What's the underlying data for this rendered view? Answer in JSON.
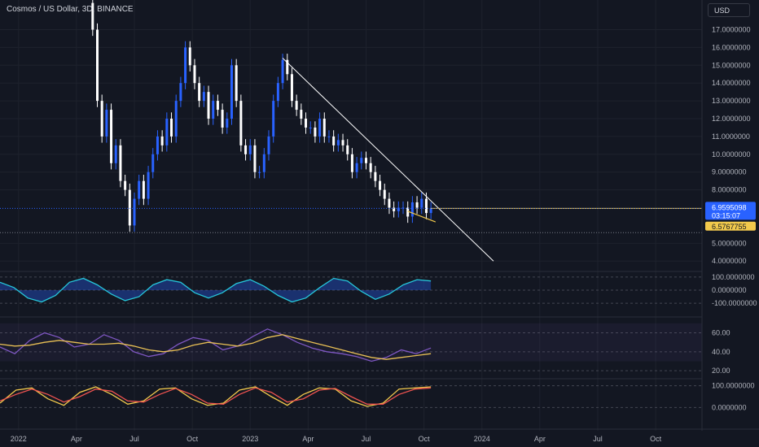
{
  "header": {
    "symbol_title": "Cosmos / US Dollar, 3D, BINANCE",
    "currency": "USD"
  },
  "colors": {
    "background": "#131722",
    "up": "#2962ff",
    "down": "#ffffff",
    "trendline": "#ffffff",
    "highlight": "#f2c94c",
    "last_price_badge": "#2962ff",
    "countdown_badge": "#1e53e5",
    "ref_badge": "#f2c94c",
    "osc_line": "#26c6da",
    "osc_fill": "#2962ff",
    "rsi_line": "#7e57c2",
    "rsi_ma": "#f2c94c",
    "stoch_k": "#f2c94c",
    "stoch_d": "#ef5350"
  },
  "chart_data": [
    {
      "type": "candlestick",
      "title": "Cosmos / US Dollar, 3D, BINANCE",
      "price_labels": [
        "17.0000000",
        "16.0000000",
        "15.0000000",
        "14.0000000",
        "13.0000000",
        "12.0000000",
        "11.0000000",
        "10.0000000",
        "9.0000000",
        "8.0000000",
        "6.9595098",
        "03:15:07",
        "6.5767755",
        "5.0000000",
        "4.0000000"
      ],
      "y_ticks": [
        17,
        16,
        15,
        14,
        13,
        12,
        11,
        10,
        9,
        8,
        5,
        4
      ],
      "last_price": 6.9595098,
      "last_price_label": "6.9595098",
      "countdown_label": "03:15:07",
      "ref_price": 6.5767755,
      "ref_price_label": "6.5767755",
      "ylim": [
        3.6,
        18.3
      ],
      "x_tick_labels": [
        "2022",
        "Apr",
        "Jul",
        "Oct",
        "2023",
        "Apr",
        "Jul",
        "Oct",
        "2024",
        "Apr",
        "Jul",
        "Oct"
      ],
      "x_tick_index": [
        0,
        1,
        2,
        3,
        4,
        5,
        6,
        7,
        8,
        9,
        10,
        11
      ],
      "close_path": [
        [
          2022.3,
          18.5
        ],
        [
          2022.32,
          17.0
        ],
        [
          2022.34,
          13.0
        ],
        [
          2022.36,
          11.0
        ],
        [
          2022.38,
          12.5
        ],
        [
          2022.4,
          9.5
        ],
        [
          2022.42,
          10.5
        ],
        [
          2022.44,
          8.5
        ],
        [
          2022.46,
          8.0
        ],
        [
          2022.48,
          6.0
        ],
        [
          2022.5,
          7.5
        ],
        [
          2022.52,
          8.5
        ],
        [
          2022.54,
          7.5
        ],
        [
          2022.56,
          9.0
        ],
        [
          2022.58,
          10.0
        ],
        [
          2022.6,
          11.0
        ],
        [
          2022.62,
          10.5
        ],
        [
          2022.64,
          12.0
        ],
        [
          2022.66,
          11.0
        ],
        [
          2022.68,
          13.0
        ],
        [
          2022.7,
          14.0
        ],
        [
          2022.72,
          16.0
        ],
        [
          2022.74,
          15.0
        ],
        [
          2022.76,
          14.0
        ],
        [
          2022.78,
          13.0
        ],
        [
          2022.8,
          13.5
        ],
        [
          2022.82,
          12.0
        ],
        [
          2022.84,
          13.0
        ],
        [
          2022.86,
          12.5
        ],
        [
          2022.88,
          11.5
        ],
        [
          2022.9,
          12.0
        ],
        [
          2022.92,
          15.0
        ],
        [
          2022.94,
          13.0
        ],
        [
          2022.96,
          10.5
        ],
        [
          2022.98,
          10.0
        ],
        [
          2023.0,
          10.5
        ],
        [
          2023.02,
          9.0
        ],
        [
          2023.04,
          9.0
        ],
        [
          2023.06,
          10.0
        ],
        [
          2023.08,
          11.0
        ],
        [
          2023.1,
          13.0
        ],
        [
          2023.12,
          14.0
        ],
        [
          2023.14,
          15.3
        ],
        [
          2023.16,
          14.5
        ],
        [
          2023.18,
          13.0
        ],
        [
          2023.2,
          12.5
        ],
        [
          2023.22,
          12.0
        ],
        [
          2023.24,
          11.5
        ],
        [
          2023.26,
          11.5
        ],
        [
          2023.28,
          11.0
        ],
        [
          2023.3,
          12.0
        ],
        [
          2023.32,
          11.0
        ],
        [
          2023.34,
          11.0
        ],
        [
          2023.36,
          10.5
        ],
        [
          2023.38,
          10.8
        ],
        [
          2023.4,
          10.5
        ],
        [
          2023.42,
          10.0
        ],
        [
          2023.44,
          9.0
        ],
        [
          2023.46,
          9.5
        ],
        [
          2023.48,
          9.8
        ],
        [
          2023.5,
          9.5
        ],
        [
          2023.52,
          9.0
        ],
        [
          2023.54,
          8.5
        ],
        [
          2023.56,
          8.0
        ],
        [
          2023.58,
          7.5
        ],
        [
          2023.6,
          7.0
        ],
        [
          2023.62,
          6.8
        ],
        [
          2023.64,
          7.0
        ],
        [
          2023.66,
          7.0
        ],
        [
          2023.68,
          6.5
        ],
        [
          2023.7,
          7.3
        ],
        [
          2023.72,
          7.0
        ],
        [
          2023.74,
          7.5
        ],
        [
          2023.76,
          6.7
        ],
        [
          2023.78,
          6.96
        ]
      ],
      "annotations": [
        {
          "type": "trendline",
          "from": [
            2023.14,
            15.4
          ],
          "to": [
            2024.05,
            4.0
          ]
        },
        {
          "type": "horizontal",
          "y": 6.96,
          "from": 2023.78,
          "to": 2024.42
        },
        {
          "type": "arrow",
          "from": [
            2023.68,
            6.8
          ],
          "to": [
            2023.8,
            6.2
          ]
        }
      ]
    },
    {
      "type": "line",
      "title": "",
      "y_tick_labels": [
        "100.0000000",
        "0.0000000",
        "-100.0000000"
      ],
      "y_ticks": [
        100,
        0,
        -100
      ],
      "ylim": [
        -130,
        130
      ],
      "series": [
        {
          "values": [
            60,
            20,
            -60,
            -90,
            -40,
            60,
            90,
            40,
            -30,
            -80,
            -50,
            40,
            80,
            60,
            -20,
            -60,
            -20,
            50,
            80,
            30,
            -40,
            -90,
            -60,
            20,
            90,
            70,
            -10,
            -70,
            -30,
            40,
            80,
            70
          ]
        }
      ]
    },
    {
      "type": "line",
      "title": "",
      "y_tick_labels": [
        "60.00",
        "40.00",
        "20.00"
      ],
      "y_ticks": [
        60,
        40,
        20
      ],
      "ylim": [
        15,
        75
      ],
      "series": [
        {
          "values": [
            45,
            38,
            52,
            60,
            55,
            45,
            48,
            58,
            52,
            40,
            35,
            38,
            48,
            55,
            52,
            42,
            46,
            56,
            64,
            58,
            50,
            44,
            40,
            38,
            35,
            30,
            34,
            42,
            38,
            44
          ]
        },
        {
          "values": [
            48,
            46,
            47,
            50,
            52,
            50,
            48,
            48,
            49,
            46,
            42,
            40,
            42,
            47,
            50,
            48,
            46,
            49,
            55,
            58,
            54,
            50,
            46,
            42,
            38,
            34,
            32,
            34,
            36,
            38
          ]
        }
      ]
    },
    {
      "type": "line",
      "title": "",
      "y_tick_labels": [
        "100.0000000",
        "0.0000000"
      ],
      "y_ticks": [
        100,
        0
      ],
      "ylim": [
        -25,
        125
      ],
      "series": [
        {
          "values": [
            20,
            80,
            90,
            40,
            10,
            70,
            95,
            60,
            15,
            30,
            85,
            90,
            40,
            10,
            20,
            80,
            95,
            50,
            10,
            60,
            90,
            85,
            30,
            5,
            20,
            85,
            90,
            95
          ]
        },
        {
          "values": [
            30,
            60,
            85,
            60,
            25,
            50,
            85,
            75,
            30,
            25,
            60,
            88,
            60,
            20,
            15,
            60,
            90,
            70,
            25,
            40,
            80,
            88,
            50,
            15,
            15,
            60,
            85,
            90
          ]
        }
      ]
    }
  ]
}
